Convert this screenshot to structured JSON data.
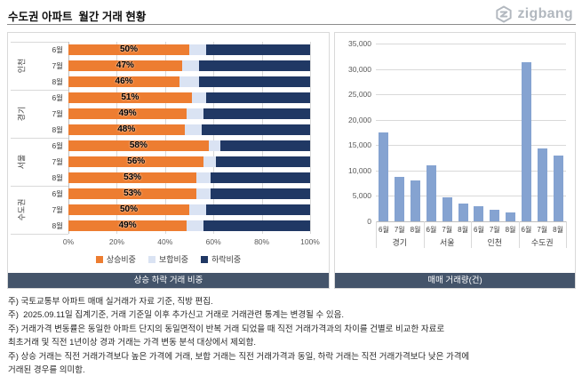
{
  "title": "수도권 아파트  월간 거래 현황",
  "logo": {
    "text": "zigbang"
  },
  "chart_data": [
    {
      "type": "bar",
      "subtype": "horizontal-stacked-100pct",
      "caption": "상승 하락 거래 비중",
      "regions": [
        "인천",
        "경기",
        "서울",
        "수도권"
      ],
      "months": [
        "6월",
        "7월",
        "8월"
      ],
      "legend": [
        {
          "label": "상승비중",
          "color": "#ED7D31"
        },
        {
          "label": "보합비중",
          "color": "#DAE3F3"
        },
        {
          "label": "하락비중",
          "color": "#203864"
        }
      ],
      "x_ticks": [
        "0%",
        "20%",
        "40%",
        "60%",
        "80%",
        "100%"
      ],
      "xlim": [
        0,
        100
      ],
      "grid": true,
      "legend_position": "bottom",
      "rows": [
        {
          "region": "인천",
          "month": "6월",
          "rise": 50,
          "flat": 7,
          "fall": 43,
          "label": "50%"
        },
        {
          "region": "인천",
          "month": "7월",
          "rise": 47,
          "flat": 7,
          "fall": 46,
          "label": "47%"
        },
        {
          "region": "인천",
          "month": "8월",
          "rise": 46,
          "flat": 8,
          "fall": 46,
          "label": "46%"
        },
        {
          "region": "경기",
          "month": "6월",
          "rise": 51,
          "flat": 6,
          "fall": 43,
          "label": "51%"
        },
        {
          "region": "경기",
          "month": "7월",
          "rise": 49,
          "flat": 7,
          "fall": 44,
          "label": "49%"
        },
        {
          "region": "경기",
          "month": "8월",
          "rise": 48,
          "flat": 7,
          "fall": 45,
          "label": "48%"
        },
        {
          "region": "서울",
          "month": "6월",
          "rise": 58,
          "flat": 5,
          "fall": 37,
          "label": "58%"
        },
        {
          "region": "서울",
          "month": "7월",
          "rise": 56,
          "flat": 5,
          "fall": 39,
          "label": "56%"
        },
        {
          "region": "서울",
          "month": "8월",
          "rise": 53,
          "flat": 6,
          "fall": 41,
          "label": "53%"
        },
        {
          "region": "수도권",
          "month": "6월",
          "rise": 53,
          "flat": 6,
          "fall": 41,
          "label": "53%"
        },
        {
          "region": "수도권",
          "month": "7월",
          "rise": 50,
          "flat": 7,
          "fall": 43,
          "label": "50%"
        },
        {
          "region": "수도권",
          "month": "8월",
          "rise": 49,
          "flat": 7,
          "fall": 44,
          "label": "49%"
        }
      ]
    },
    {
      "type": "bar",
      "subtype": "vertical-grouped",
      "caption": "매매 거래량(건)",
      "bar_color": "#85A3D1",
      "ylim": [
        0,
        35000
      ],
      "y_ticks": [
        "0",
        "5,000",
        "10,000",
        "15,000",
        "20,000",
        "25,000",
        "30,000",
        "35,000"
      ],
      "grid": true,
      "groups": [
        {
          "region": "경기",
          "months": [
            "6월",
            "7월",
            "8월"
          ],
          "values": [
            17500,
            8700,
            8000
          ]
        },
        {
          "region": "서울",
          "months": [
            "6월",
            "7월",
            "8월"
          ],
          "values": [
            11000,
            4800,
            3500
          ]
        },
        {
          "region": "인천",
          "months": [
            "6월",
            "7월",
            "8월"
          ],
          "values": [
            3000,
            2300,
            1700
          ]
        },
        {
          "region": "수도권",
          "months": [
            "6월",
            "7월",
            "8월"
          ],
          "values": [
            31300,
            14300,
            13000
          ]
        }
      ]
    }
  ],
  "footnotes": [
    "주) 국토교통부 아파트 매매 실거래가 자료 기준, 직방 편집.",
    "주)  2025.09.11일 집계기준, 거래 기준일 이후 추가신고 거래로 거래관련 통계는 변경될 수 있음.",
    "주) 거래가격 변동률은 동일한 아파트 단지의 동일면적이 반복 거래 되었을 때 직전 거래가격과의 차이를 건별로 비교한 자료로",
    "최초거래 및 직전 1년이상 경과 거래는 가격 변동 분석 대상에서 제외함.",
    "주) 상승 거래는 직전 거래가격보다 높은 가격에 거래, 보합 거래는 직전 거래가격과 동일, 하락 거래는 직전 거래가격보다 낮은 가격에",
    "거래된 경우를 의미함."
  ]
}
